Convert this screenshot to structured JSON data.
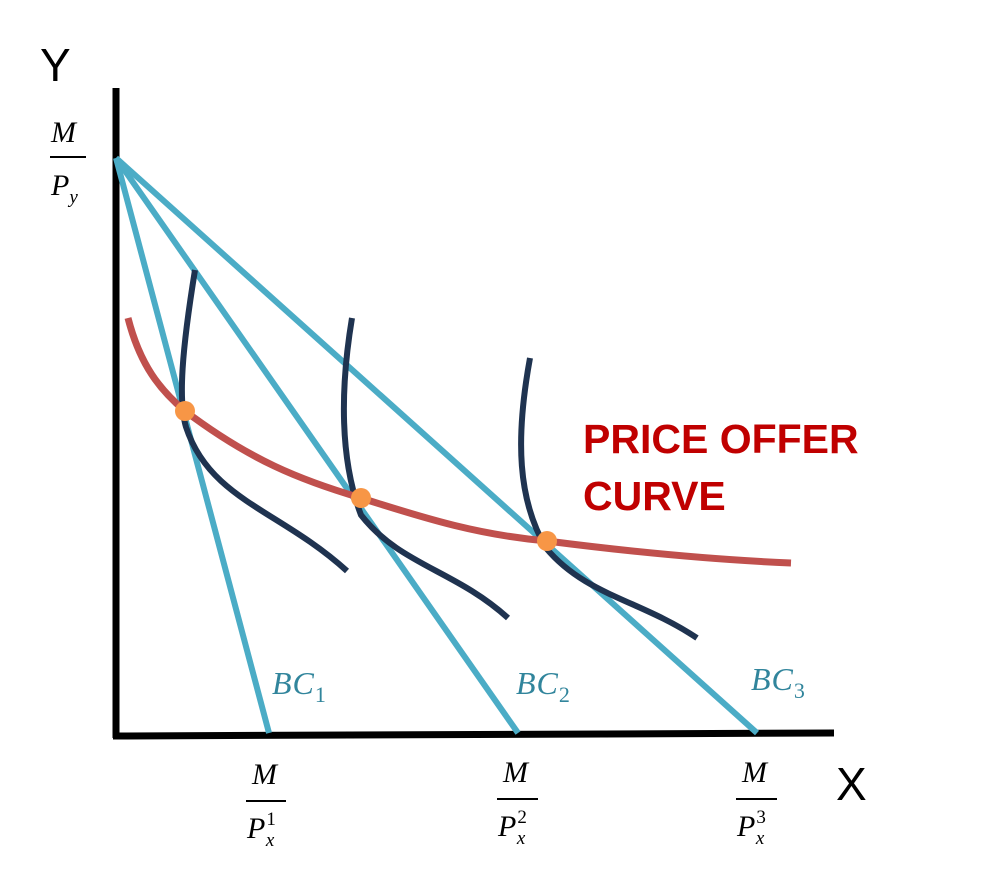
{
  "axes": {
    "y_letter": "Y",
    "x_letter": "X"
  },
  "y_intercept_label": {
    "numerator": "M",
    "denominator_base": "P",
    "denominator_sub": "y"
  },
  "x_intercept_labels": [
    {
      "numerator": "M",
      "denominator_base": "P",
      "denominator_sub": "x",
      "denominator_sup": "1"
    },
    {
      "numerator": "M",
      "denominator_base": "P",
      "denominator_sub": "x",
      "denominator_sup": "2"
    },
    {
      "numerator": "M",
      "denominator_base": "P",
      "denominator_sub": "x",
      "denominator_sup": "3"
    }
  ],
  "budget_lines": [
    {
      "base": "BC",
      "sub": "1"
    },
    {
      "base": "BC",
      "sub": "2"
    },
    {
      "base": "BC",
      "sub": "3"
    }
  ],
  "price_offer_curve": {
    "label_line1": "PRICE OFFER",
    "label_line2": "CURVE"
  },
  "colors": {
    "axis": "#000000",
    "budget_line": "#4bacc6",
    "indifference_curve": "#1f3350",
    "price_offer_curve": "#c0504d",
    "equilibrium_point": "#f79646",
    "label_red": "#c00000",
    "label_blue": "#31859c"
  }
}
